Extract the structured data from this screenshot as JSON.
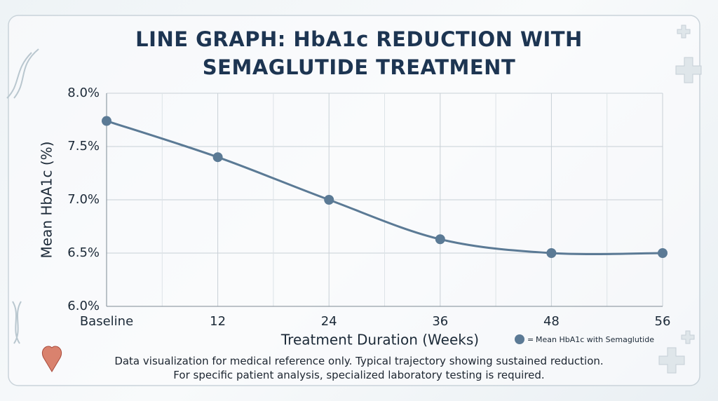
{
  "chart_data": {
    "type": "line",
    "title": "LINE GRAPH: HbA1c REDUCTION WITH SEMAGLUTIDE TREATMENT",
    "x_label": "Treatment Duration (Weeks)",
    "y_label": "Mean HbA1c (%)",
    "categories": [
      "Baseline",
      "12",
      "24",
      "36",
      "48",
      "56"
    ],
    "series": [
      {
        "name": "Mean HbA1c with Semaglutide",
        "color": "#5b7a95",
        "values": [
          7.74,
          7.4,
          7.0,
          6.63,
          6.5,
          6.5
        ]
      }
    ],
    "legend_marker_text": "=",
    "ylim": [
      6,
      8
    ],
    "yticks": [
      {
        "value": 6,
        "label": "6.0%"
      },
      {
        "value": 6.5,
        "label": "6.5%"
      },
      {
        "value": 7,
        "label": "7.0%"
      },
      {
        "value": 7.5,
        "label": "7.5%"
      },
      {
        "value": 8,
        "label": "8.0%"
      }
    ],
    "grid": true,
    "notes": [
      "Data visualization for medical reference only. Typical trajectory showing sustained reduction.",
      "For specific patient analysis, specialized laboratory testing is required."
    ]
  }
}
